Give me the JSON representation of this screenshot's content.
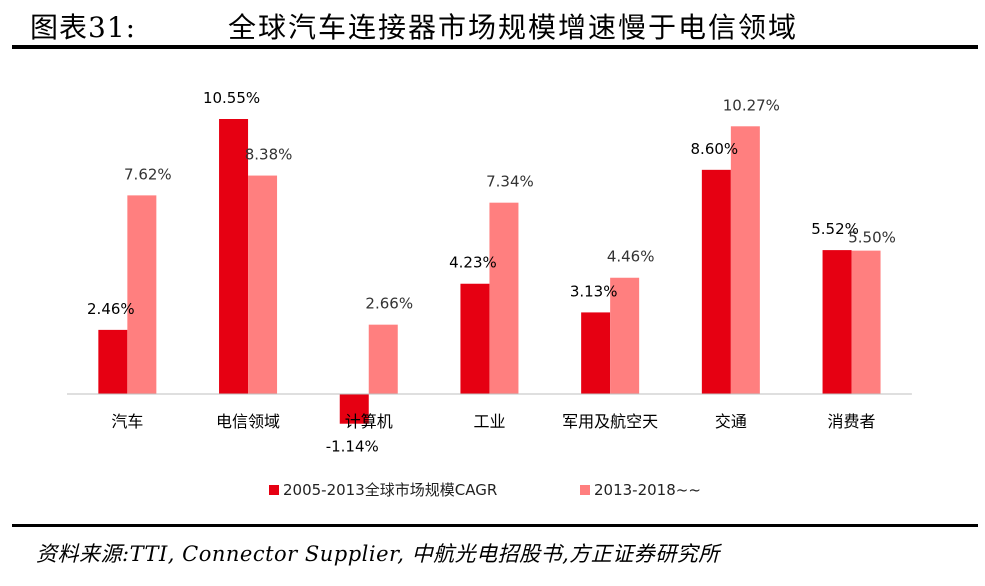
{
  "figure": {
    "label": "图表31:",
    "title": "全球汽车连接器市场规模增速慢于电信领域",
    "source": "资料来源:TTI, Connector Supplier, 中航光电招股书,方正证券研究所"
  },
  "chart_data": {
    "type": "bar",
    "categories": [
      "汽车",
      "电信领域",
      "计算机",
      "工业",
      "军用及航空天",
      "交通",
      "消费者"
    ],
    "series": [
      {
        "name": "2005-2013全球市场规模CAGR",
        "color": "#E60012",
        "values": [
          2.46,
          10.55,
          -1.14,
          4.23,
          3.13,
          8.6,
          5.52
        ],
        "labels": [
          "2.46%",
          "10.55%",
          "-1.14%",
          "4.23%",
          "3.13%",
          "8.60%",
          "5.52%"
        ]
      },
      {
        "name": "2013-2018~~",
        "color": "#FF7F7F",
        "values": [
          7.62,
          8.38,
          2.66,
          7.34,
          4.46,
          10.27,
          5.5
        ],
        "labels": [
          "7.62%",
          "8.38%",
          "2.66%",
          "7.34%",
          "4.46%",
          "10.27%",
          "5.50%"
        ]
      }
    ],
    "ylim": [
      -1.14,
      10.55
    ],
    "grid": false,
    "legend_position": "bottom-center"
  }
}
